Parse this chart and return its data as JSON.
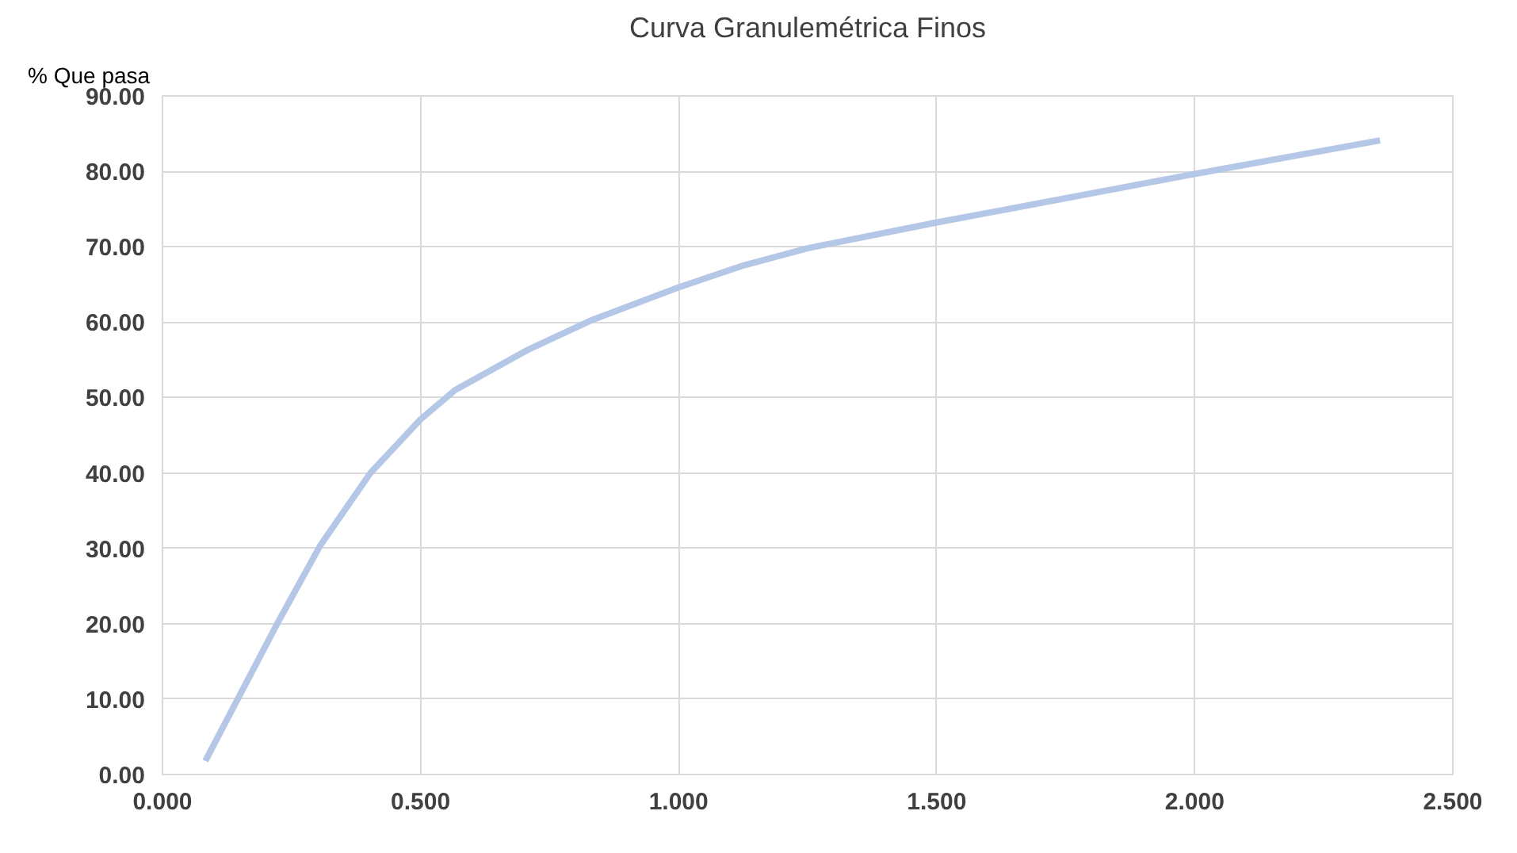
{
  "chart_data": {
    "type": "line",
    "title": "Curva Granulemétrica Finos",
    "ylabel": "% Que pasa",
    "x": [
      0.083,
      0.223,
      0.305,
      0.403,
      0.5,
      0.567,
      0.71,
      0.833,
      1.0,
      1.12,
      1.25,
      1.499,
      1.996,
      2.359
    ],
    "series": [
      {
        "color": "#b4c7e7",
        "values": [
          1.8,
          20.1,
          30.3,
          40.0,
          47.1,
          51.0,
          56.4,
          60.3,
          64.6,
          67.4,
          69.8,
          73.2,
          79.6,
          84.1
        ]
      }
    ],
    "xlim": [
      0,
      2.5
    ],
    "ylim": [
      0,
      90
    ],
    "xticks": [
      {
        "value": 0,
        "label": "0.000"
      },
      {
        "value": 0.5,
        "label": "0.500"
      },
      {
        "value": 1.0,
        "label": "1.000"
      },
      {
        "value": 1.5,
        "label": "1.500"
      },
      {
        "value": 2.0,
        "label": "2.000"
      },
      {
        "value": 2.5,
        "label": "2.500"
      }
    ],
    "yticks": [
      {
        "value": 0,
        "label": "0.00"
      },
      {
        "value": 10,
        "label": "10.00"
      },
      {
        "value": 20,
        "label": "20.00"
      },
      {
        "value": 30,
        "label": "30.00"
      },
      {
        "value": 40,
        "label": "40.00"
      },
      {
        "value": 50,
        "label": "50.00"
      },
      {
        "value": 60,
        "label": "60.00"
      },
      {
        "value": 70,
        "label": "70.00"
      },
      {
        "value": 80,
        "label": "80.00"
      },
      {
        "value": 90,
        "label": "90.00"
      }
    ],
    "grid": true,
    "marker": "none",
    "line_style": "solid"
  }
}
